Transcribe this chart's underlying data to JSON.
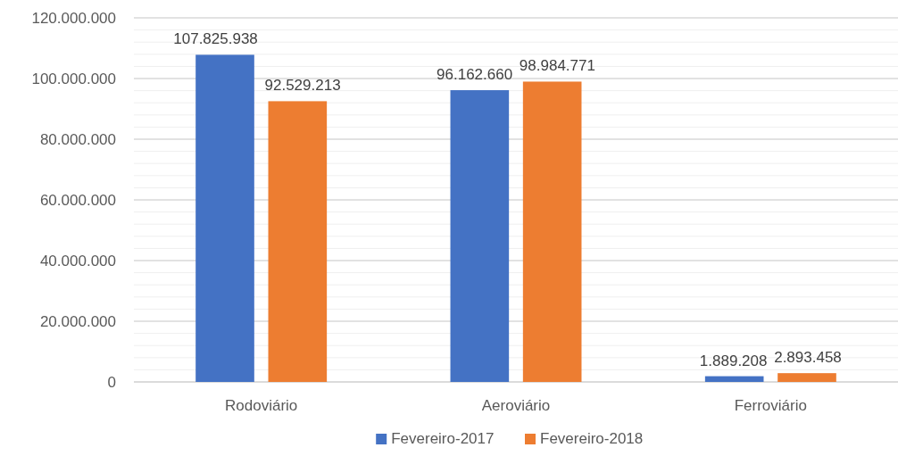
{
  "chart_data": {
    "type": "bar",
    "categories": [
      "Rodoviário",
      "Aeroviário",
      "Ferroviário"
    ],
    "series": [
      {
        "name": "Fevereiro-2017",
        "color": "#4472c4",
        "values": [
          107825938,
          96162660,
          1889208
        ],
        "value_labels": [
          "107.825.938",
          "96.162.660",
          "1.889.208"
        ]
      },
      {
        "name": "Fevereiro-2018",
        "color": "#ed7d31",
        "values": [
          92529213,
          98984771,
          2893458
        ],
        "value_labels": [
          "92.529.213",
          "98.984.771",
          "2.893.458"
        ]
      }
    ],
    "ylim": [
      0,
      120000000
    ],
    "yticks": [
      {
        "value": 0,
        "label": "0"
      },
      {
        "value": 4000000,
        "label": null
      },
      {
        "value": 8000000,
        "label": null
      },
      {
        "value": 12000000,
        "label": null
      },
      {
        "value": 16000000,
        "label": null
      },
      {
        "value": 20000000,
        "label": "20.000.000"
      },
      {
        "value": 24000000,
        "label": null
      },
      {
        "value": 28000000,
        "label": null
      },
      {
        "value": 32000000,
        "label": null
      },
      {
        "value": 36000000,
        "label": null
      },
      {
        "value": 40000000,
        "label": "40.000.000"
      },
      {
        "value": 44000000,
        "label": null
      },
      {
        "value": 48000000,
        "label": null
      },
      {
        "value": 52000000,
        "label": null
      },
      {
        "value": 56000000,
        "label": null
      },
      {
        "value": 60000000,
        "label": "60.000.000"
      },
      {
        "value": 64000000,
        "label": null
      },
      {
        "value": 68000000,
        "label": null
      },
      {
        "value": 72000000,
        "label": null
      },
      {
        "value": 76000000,
        "label": null
      },
      {
        "value": 80000000,
        "label": "80.000.000"
      },
      {
        "value": 84000000,
        "label": null
      },
      {
        "value": 88000000,
        "label": null
      },
      {
        "value": 92000000,
        "label": null
      },
      {
        "value": 96000000,
        "label": null
      },
      {
        "value": 100000000,
        "label": "100.000.000"
      },
      {
        "value": 104000000,
        "label": null
      },
      {
        "value": 108000000,
        "label": null
      },
      {
        "value": 112000000,
        "label": null
      },
      {
        "value": 116000000,
        "label": null
      },
      {
        "value": 120000000,
        "label": "120.000.000"
      }
    ],
    "grid": "y",
    "legend": "bottom"
  }
}
